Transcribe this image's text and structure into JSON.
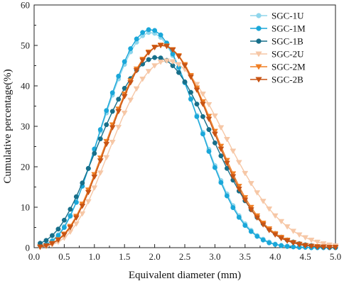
{
  "chart_data": {
    "type": "line",
    "xlabel": "Equivalent diameter (mm)",
    "ylabel": "Cumulative percentage(%)",
    "xlim": [
      0.0,
      5.0
    ],
    "ylim": [
      0,
      60
    ],
    "xticks": [
      "0.0",
      "0.5",
      "1.0",
      "1.5",
      "2.0",
      "2.5",
      "3.0",
      "3.5",
      "4.0",
      "4.5",
      "5.0"
    ],
    "yticks": [
      "0",
      "10",
      "20",
      "30",
      "40",
      "50",
      "60"
    ],
    "grid": false,
    "legend_position": "top-right",
    "x": [
      0.1,
      0.2,
      0.3,
      0.4,
      0.5,
      0.6,
      0.7,
      0.8,
      0.9,
      1.0,
      1.1,
      1.2,
      1.3,
      1.4,
      1.5,
      1.6,
      1.7,
      1.8,
      1.9,
      2.0,
      2.1,
      2.2,
      2.3,
      2.4,
      2.5,
      2.6,
      2.7,
      2.8,
      2.9,
      3.0,
      3.1,
      3.2,
      3.3,
      3.4,
      3.5,
      3.6,
      3.7,
      3.8,
      3.9,
      4.0,
      4.1,
      4.2,
      4.3,
      4.4,
      4.5,
      4.6,
      4.7,
      4.8,
      4.9,
      5.0
    ],
    "series": [
      {
        "name": "SGC-1U",
        "color": "#8fd6ec",
        "marker": "circle",
        "values": [
          0.5,
          0.9,
          1.8,
          3.2,
          5.3,
          8.0,
          11.3,
          15.2,
          19.5,
          24.1,
          28.8,
          33.3,
          37.7,
          41.7,
          45.3,
          48.4,
          50.8,
          52.4,
          53.2,
          53.0,
          52.0,
          50.1,
          47.5,
          44.4,
          40.8,
          36.9,
          32.7,
          28.5,
          24.3,
          20.3,
          16.6,
          13.3,
          10.4,
          7.9,
          5.9,
          4.3,
          3.0,
          2.1,
          1.4,
          0.9,
          0.6,
          0.4,
          0.2,
          0.1,
          0.1,
          0.0,
          0.0,
          0.0,
          0.0,
          0.0
        ]
      },
      {
        "name": "SGC-1M",
        "color": "#1aa7d9",
        "marker": "circle",
        "values": [
          0.4,
          0.8,
          1.6,
          3.0,
          5.0,
          7.8,
          11.2,
          15.2,
          19.6,
          24.4,
          29.2,
          33.9,
          38.3,
          42.4,
          46.0,
          49.2,
          51.6,
          53.2,
          53.9,
          53.7,
          52.6,
          50.6,
          47.9,
          44.6,
          40.8,
          36.7,
          32.4,
          28.1,
          23.8,
          19.8,
          16.1,
          12.8,
          9.9,
          7.5,
          5.5,
          4.0,
          2.8,
          1.9,
          1.2,
          0.8,
          0.5,
          0.3,
          0.2,
          0.1,
          0.1,
          0.0,
          0.0,
          0.0,
          0.0,
          0.0
        ]
      },
      {
        "name": "SGC-1B",
        "color": "#176f8a",
        "marker": "circle",
        "values": [
          1.1,
          1.8,
          3.0,
          4.6,
          6.8,
          9.5,
          12.6,
          16.0,
          19.6,
          23.3,
          26.9,
          30.4,
          33.7,
          36.7,
          39.4,
          41.8,
          43.9,
          45.4,
          46.5,
          47.0,
          46.9,
          46.3,
          45.0,
          43.3,
          41.0,
          38.4,
          35.5,
          32.4,
          29.2,
          25.9,
          22.7,
          19.6,
          16.7,
          14.0,
          11.6,
          9.4,
          7.5,
          5.9,
          4.6,
          3.5,
          2.6,
          1.9,
          1.4,
          1.0,
          0.7,
          0.5,
          0.3,
          0.2,
          0.1,
          0.1
        ]
      },
      {
        "name": "SGC-2U",
        "color": "#f6c7a6",
        "marker": "triangle-down",
        "values": [
          0.1,
          0.3,
          0.7,
          1.4,
          2.4,
          3.9,
          5.9,
          8.4,
          11.4,
          14.8,
          18.5,
          22.3,
          26.1,
          29.8,
          33.3,
          36.5,
          39.3,
          41.7,
          43.6,
          45.0,
          45.9,
          46.2,
          46.0,
          45.3,
          44.1,
          42.4,
          40.4,
          38.0,
          35.4,
          32.6,
          29.7,
          26.8,
          23.9,
          21.1,
          18.4,
          15.9,
          13.6,
          11.5,
          9.6,
          7.9,
          6.5,
          5.2,
          4.1,
          3.2,
          2.5,
          1.9,
          1.4,
          1.0,
          0.7,
          0.5
        ]
      },
      {
        "name": "SGC-2M",
        "color": "#f07f24",
        "marker": "triangle-down",
        "values": [
          0.2,
          0.5,
          1.1,
          2.0,
          3.4,
          5.3,
          7.8,
          10.8,
          14.3,
          18.1,
          22.2,
          26.3,
          30.4,
          34.3,
          38.0,
          41.3,
          44.2,
          46.6,
          48.4,
          49.6,
          50.1,
          49.9,
          49.0,
          47.5,
          45.3,
          42.6,
          39.5,
          36.1,
          32.5,
          28.8,
          25.1,
          21.6,
          18.3,
          15.2,
          12.4,
          10.0,
          7.9,
          6.1,
          4.7,
          3.5,
          2.6,
          1.9,
          1.3,
          0.9,
          0.6,
          0.4,
          0.3,
          0.2,
          0.1,
          0.1
        ]
      },
      {
        "name": "SGC-2B",
        "color": "#c85414",
        "marker": "triangle-down",
        "values": [
          0.2,
          0.5,
          1.0,
          1.9,
          3.2,
          5.0,
          7.4,
          10.3,
          13.7,
          17.5,
          21.5,
          25.6,
          29.7,
          33.7,
          37.4,
          40.8,
          43.8,
          46.3,
          48.2,
          49.5,
          50.0,
          49.8,
          48.9,
          47.3,
          45.0,
          42.2,
          39.0,
          35.5,
          31.8,
          28.1,
          24.4,
          20.9,
          17.6,
          14.5,
          11.8,
          9.4,
          7.4,
          5.7,
          4.3,
          3.2,
          2.3,
          1.7,
          1.2,
          0.8,
          0.5,
          0.4,
          0.2,
          0.2,
          0.1,
          0.1
        ]
      }
    ]
  }
}
